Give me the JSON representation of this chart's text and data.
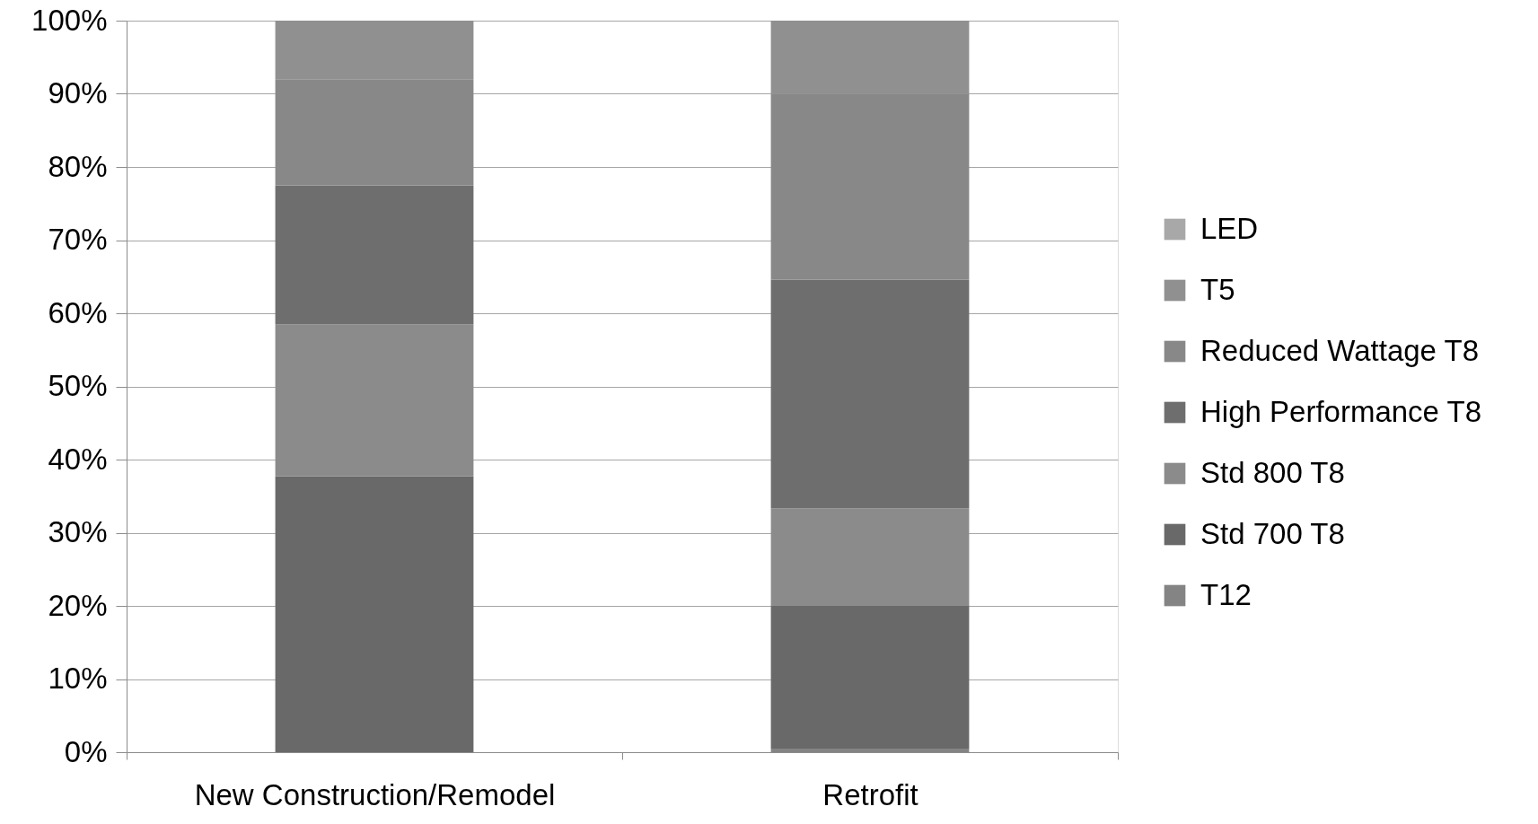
{
  "chart_data": {
    "type": "bar",
    "stacked": true,
    "categories": [
      "New Construction/Remodel",
      "Retrofit"
    ],
    "series": [
      {
        "name": "T12",
        "color": "#848484",
        "values": [
          null,
          0.5
        ]
      },
      {
        "name": "Std 700 T8",
        "color": "#696969",
        "values": [
          37.7,
          19.6
        ]
      },
      {
        "name": "Std 800 T8",
        "color": "#8b8b8b",
        "values": [
          20.8,
          13.2
        ]
      },
      {
        "name": "High Performance T8",
        "color": "#6e6e6e",
        "values": [
          19.0,
          31.3
        ]
      },
      {
        "name": "Reduced Wattage T8",
        "color": "#888888",
        "values": [
          14.5,
          25.4
        ]
      },
      {
        "name": "T5",
        "color": "#909090",
        "values": [
          8.0,
          10.0
        ]
      },
      {
        "name": "LED",
        "color": "#a8a8a8",
        "values": [
          null,
          null
        ]
      }
    ],
    "ylim": [
      0,
      100
    ],
    "yticks": [
      {
        "value": 0,
        "label": "0%"
      },
      {
        "value": 10,
        "label": "10%"
      },
      {
        "value": 20,
        "label": "20%"
      },
      {
        "value": 30,
        "label": "30%"
      },
      {
        "value": 40,
        "label": "40%"
      },
      {
        "value": 50,
        "label": "50%"
      },
      {
        "value": 60,
        "label": "60%"
      },
      {
        "value": 70,
        "label": "70%"
      },
      {
        "value": 80,
        "label": "80%"
      },
      {
        "value": 90,
        "label": "90%"
      },
      {
        "value": 100,
        "label": "100%"
      }
    ],
    "grid": "y",
    "legend": "right"
  }
}
